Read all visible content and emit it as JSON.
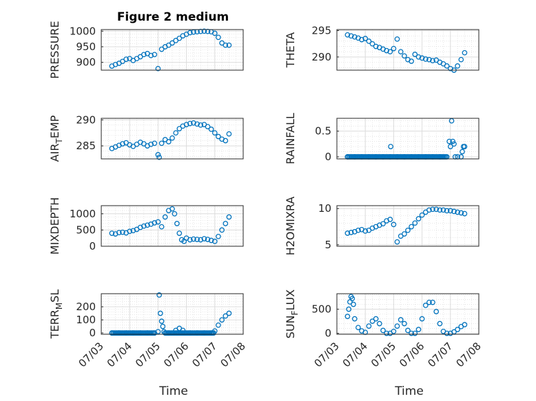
{
  "chart_data": {
    "title": "Figure 2 medium",
    "type": "scatter",
    "marker_color": "#0072BD",
    "grid": true,
    "minor_grid": true,
    "date_ticks": [
      "07/03",
      "07/04",
      "07/05",
      "07/06",
      "07/07",
      "07/08"
    ],
    "xlabel": "Time",
    "xlim": [
      "07/03",
      "07/08"
    ],
    "panels": [
      {
        "name": "PRESSURE",
        "ylabel": "PRESSURE",
        "ylim": [
          875,
          1005
        ],
        "yticks": [
          900,
          950,
          1000
        ],
        "x": [
          "07/03 09:00",
          "07/03 12:00",
          "07/03 15:00",
          "07/03 18:00",
          "07/03 21:00",
          "07/04 00:00",
          "07/04 03:00",
          "07/04 06:00",
          "07/04 09:00",
          "07/04 12:00",
          "07/04 15:00",
          "07/04 18:00",
          "07/04 21:00",
          "07/05 00:00",
          "07/05 03:00",
          "07/05 06:00",
          "07/05 09:00",
          "07/05 12:00",
          "07/05 15:00",
          "07/05 18:00",
          "07/05 21:00",
          "07/06 00:00",
          "07/06 03:00",
          "07/06 06:00",
          "07/06 09:00",
          "07/06 12:00",
          "07/06 15:00",
          "07/06 18:00",
          "07/06 21:00",
          "07/07 00:00",
          "07/07 03:00",
          "07/07 06:00",
          "07/07 09:00",
          "07/07 12:00"
        ],
        "y": [
          888,
          893,
          897,
          903,
          910,
          912,
          906,
          912,
          918,
          925,
          928,
          922,
          925,
          880,
          942,
          950,
          955,
          962,
          970,
          977,
          985,
          990,
          995,
          997,
          998,
          999,
          1000,
          999,
          998,
          993,
          980,
          962,
          955,
          955
        ]
      },
      {
        "name": "THETA",
        "ylabel": "THETA",
        "ylim": [
          287.5,
          295.2
        ],
        "yticks": [
          290,
          295
        ],
        "x": [
          "07/03 09:00",
          "07/03 12:00",
          "07/03 15:00",
          "07/03 18:00",
          "07/03 21:00",
          "07/04 00:00",
          "07/04 03:00",
          "07/04 06:00",
          "07/04 09:00",
          "07/04 12:00",
          "07/04 15:00",
          "07/04 18:00",
          "07/04 21:00",
          "07/05 00:00",
          "07/05 03:00",
          "07/05 06:00",
          "07/05 09:00",
          "07/05 12:00",
          "07/05 15:00",
          "07/05 18:00",
          "07/05 21:00",
          "07/06 00:00",
          "07/06 03:00",
          "07/06 06:00",
          "07/06 09:00",
          "07/06 12:00",
          "07/06 15:00",
          "07/06 18:00",
          "07/06 21:00",
          "07/07 00:00",
          "07/07 03:00",
          "07/07 06:00",
          "07/07 09:00",
          "07/07 12:00"
        ],
        "y": [
          294.2,
          294.0,
          293.8,
          293.6,
          293.3,
          293.5,
          293.0,
          292.5,
          292.0,
          291.8,
          291.5,
          291.2,
          291.0,
          291.6,
          293.4,
          291.0,
          290.2,
          289.5,
          289.2,
          290.5,
          290.0,
          289.8,
          289.6,
          289.5,
          289.3,
          289.4,
          289.0,
          288.7,
          288.3,
          287.8,
          287.5,
          288.3,
          289.5,
          290.8
        ]
      },
      {
        "name": "AIR_TEMP",
        "ylabel": "AIR",
        "ylabel_sub": "T",
        "ylabel_end": "EMP",
        "ylim": [
          282.5,
          290.3
        ],
        "yticks": [
          285,
          290
        ],
        "x": [
          "07/03 09:00",
          "07/03 12:00",
          "07/03 15:00",
          "07/03 18:00",
          "07/03 21:00",
          "07/04 00:00",
          "07/04 03:00",
          "07/04 06:00",
          "07/04 09:00",
          "07/04 12:00",
          "07/04 15:00",
          "07/04 18:00",
          "07/04 21:00",
          "07/05 00:00",
          "07/05 01:00",
          "07/05 03:00",
          "07/05 06:00",
          "07/05 09:00",
          "07/05 12:00",
          "07/05 15:00",
          "07/05 18:00",
          "07/05 21:00",
          "07/06 00:00",
          "07/06 03:00",
          "07/06 06:00",
          "07/06 09:00",
          "07/06 12:00",
          "07/06 15:00",
          "07/06 18:00",
          "07/06 21:00",
          "07/07 00:00",
          "07/07 03:00",
          "07/07 06:00",
          "07/07 09:00",
          "07/07 12:00"
        ],
        "y": [
          284.5,
          284.8,
          285.1,
          285.4,
          285.6,
          285.2,
          284.9,
          285.3,
          285.7,
          285.4,
          285.0,
          285.3,
          285.5,
          283.3,
          282.8,
          285.5,
          286.2,
          285.8,
          286.5,
          287.5,
          288.3,
          288.8,
          289.1,
          289.3,
          289.4,
          289.2,
          289.0,
          289.1,
          288.7,
          288.2,
          287.5,
          286.8,
          286.3,
          286.0,
          287.3
        ]
      },
      {
        "name": "RAINFALL",
        "ylabel": "RAINFALL",
        "ylim": [
          -0.04,
          0.75
        ],
        "yticks": [
          0,
          0.5
        ],
        "ytick_labels": [
          "0",
          "0.5"
        ],
        "x": [
          "07/03 09:00",
          "07/03 15:00",
          "07/03 21:00",
          "07/04 03:00",
          "07/04 09:00",
          "07/04 15:00",
          "07/04 21:00",
          "07/05 03:00",
          "07/05 09:00",
          "07/05 15:00",
          "07/05 21:00",
          "07/06 03:00",
          "07/06 09:00",
          "07/06 15:00",
          "07/06 21:00",
          "07/06 23:00",
          "07/07 00:00",
          "07/07 01:00",
          "07/07 02:00",
          "07/07 03:00",
          "07/07 04:00",
          "07/07 06:00",
          "07/07 09:00",
          "07/07 10:00",
          "07/07 11:00",
          "07/07 12:00",
          "07/04 21:30"
        ],
        "y": [
          0,
          0,
          0,
          0,
          0,
          0,
          0,
          0,
          0,
          0,
          0,
          0,
          0,
          0,
          0,
          0.3,
          0.2,
          0.7,
          0.3,
          0.25,
          0,
          0,
          0,
          0.1,
          0.2,
          0.2,
          0.2
        ]
      },
      {
        "name": "MIXDEPTH",
        "ylabel": "MIXDEPTH",
        "ylim": [
          0,
          1250
        ],
        "yticks": [
          0,
          500,
          1000
        ],
        "x": [
          "07/03 09:00",
          "07/03 12:00",
          "07/03 15:00",
          "07/03 18:00",
          "07/03 21:00",
          "07/04 00:00",
          "07/04 03:00",
          "07/04 06:00",
          "07/04 09:00",
          "07/04 12:00",
          "07/04 15:00",
          "07/04 18:00",
          "07/04 21:00",
          "07/05 00:00",
          "07/05 03:00",
          "07/05 06:00",
          "07/05 09:00",
          "07/05 12:00",
          "07/05 14:00",
          "07/05 16:00",
          "07/05 18:00",
          "07/05 20:00",
          "07/05 22:00",
          "07/06 00:00",
          "07/06 03:00",
          "07/06 06:00",
          "07/06 09:00",
          "07/06 12:00",
          "07/06 15:00",
          "07/06 18:00",
          "07/06 21:00",
          "07/07 00:00",
          "07/07 03:00",
          "07/07 06:00",
          "07/07 09:00",
          "07/07 12:00"
        ],
        "y": [
          400,
          380,
          420,
          430,
          410,
          460,
          480,
          520,
          580,
          620,
          650,
          680,
          720,
          750,
          600,
          900,
          1100,
          1150,
          1000,
          700,
          400,
          200,
          150,
          250,
          200,
          220,
          210,
          200,
          230,
          210,
          180,
          150,
          300,
          500,
          700,
          900
        ]
      },
      {
        "name": "H2OMIXRA",
        "ylabel": "H2OMIXRA",
        "ylim": [
          4.8,
          10.4
        ],
        "yticks": [
          5,
          10
        ],
        "x": [
          "07/03 09:00",
          "07/03 12:00",
          "07/03 15:00",
          "07/03 18:00",
          "07/03 21:00",
          "07/04 00:00",
          "07/04 03:00",
          "07/04 06:00",
          "07/04 09:00",
          "07/04 12:00",
          "07/04 15:00",
          "07/04 18:00",
          "07/04 21:00",
          "07/05 00:00",
          "07/05 03:00",
          "07/05 06:00",
          "07/05 09:00",
          "07/05 12:00",
          "07/05 15:00",
          "07/05 18:00",
          "07/05 21:00",
          "07/06 00:00",
          "07/06 03:00",
          "07/06 06:00",
          "07/06 09:00",
          "07/06 12:00",
          "07/06 15:00",
          "07/06 18:00",
          "07/06 21:00",
          "07/07 00:00",
          "07/07 03:00",
          "07/07 06:00",
          "07/07 09:00",
          "07/07 12:00"
        ],
        "y": [
          6.6,
          6.7,
          6.8,
          7.0,
          7.1,
          6.9,
          7.0,
          7.3,
          7.5,
          7.7,
          7.9,
          8.3,
          8.5,
          7.8,
          5.4,
          6.2,
          6.5,
          7.0,
          7.5,
          8.0,
          8.6,
          9.1,
          9.5,
          9.8,
          9.9,
          9.9,
          9.8,
          9.8,
          9.7,
          9.7,
          9.6,
          9.5,
          9.4,
          9.3
        ]
      },
      {
        "name": "TERR_MSL",
        "ylabel": "TERR",
        "ylabel_sub": "M",
        "ylabel_end": "SL",
        "ylim": [
          -10,
          300
        ],
        "yticks": [
          0,
          100,
          200
        ],
        "x": [
          "07/03 09:00",
          "07/03 15:00",
          "07/03 21:00",
          "07/04 03:00",
          "07/04 09:00",
          "07/04 15:00",
          "07/04 21:00",
          "07/05 00:00",
          "07/05 01:00",
          "07/05 02:00",
          "07/05 03:00",
          "07/05 04:00",
          "07/05 05:00",
          "07/05 09:00",
          "07/05 15:00",
          "07/05 18:00",
          "07/05 21:00",
          "07/06 03:00",
          "07/06 09:00",
          "07/06 15:00",
          "07/06 21:00",
          "07/07 00:00",
          "07/07 03:00",
          "07/07 06:00",
          "07/07 09:00",
          "07/07 12:00"
        ],
        "y": [
          0,
          0,
          0,
          0,
          0,
          0,
          0,
          10,
          290,
          150,
          90,
          50,
          10,
          0,
          20,
          35,
          20,
          0,
          0,
          0,
          0,
          15,
          60,
          100,
          130,
          150
        ]
      },
      {
        "name": "SUN_FLUX",
        "ylabel": "SUN",
        "ylabel_sub": "F",
        "ylabel_end": "LUX",
        "ylim": [
          -20,
          820
        ],
        "yticks": [
          0,
          500
        ],
        "x": [
          "07/03 09:00",
          "07/03 10:00",
          "07/03 11:00",
          "07/03 12:00",
          "07/03 13:00",
          "07/03 14:00",
          "07/03 15:00",
          "07/03 18:00",
          "07/03 21:00",
          "07/04 00:00",
          "07/04 03:00",
          "07/04 06:00",
          "07/04 09:00",
          "07/04 12:00",
          "07/04 15:00",
          "07/04 18:00",
          "07/04 21:00",
          "07/05 00:00",
          "07/05 03:00",
          "07/05 06:00",
          "07/05 09:00",
          "07/05 12:00",
          "07/05 15:00",
          "07/05 18:00",
          "07/05 21:00",
          "07/06 00:00",
          "07/06 03:00",
          "07/06 06:00",
          "07/06 09:00",
          "07/06 12:00",
          "07/06 15:00",
          "07/06 18:00",
          "07/06 21:00",
          "07/07 00:00",
          "07/07 03:00",
          "07/07 06:00",
          "07/07 09:00",
          "07/07 12:00"
        ],
        "y": [
          350,
          500,
          650,
          760,
          720,
          600,
          300,
          120,
          50,
          20,
          150,
          250,
          300,
          200,
          60,
          0,
          0,
          40,
          150,
          280,
          200,
          60,
          0,
          0,
          80,
          300,
          580,
          640,
          640,
          450,
          200,
          40,
          0,
          0,
          30,
          80,
          140,
          180
        ]
      }
    ]
  }
}
